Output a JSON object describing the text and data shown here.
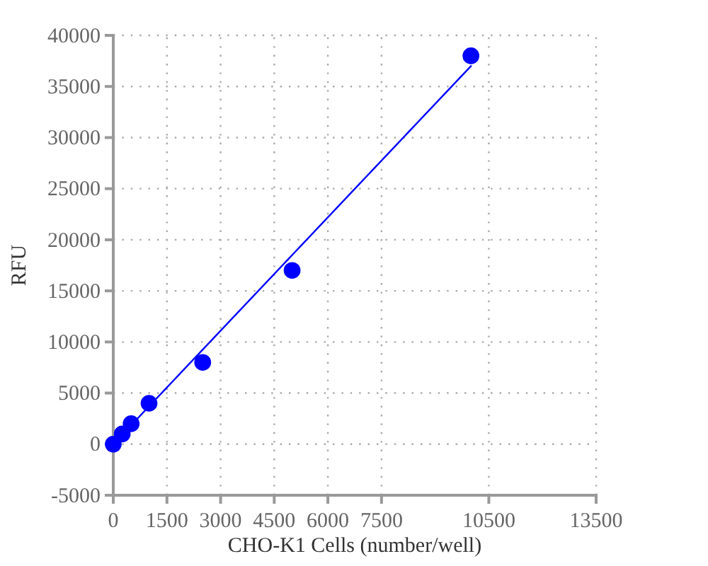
{
  "chart_data": {
    "type": "scatter",
    "xlabel": "CHO-K1 Cells (number/well)",
    "ylabel": "RFU",
    "xlim": [
      0,
      13500
    ],
    "xticks": [
      0,
      1500,
      3000,
      4500,
      6000,
      7500,
      10500,
      13500
    ],
    "ylim": [
      -5000,
      40000
    ],
    "yticks": [
      -5000,
      0,
      5000,
      10000,
      15000,
      20000,
      25000,
      30000,
      35000,
      40000
    ],
    "grid": true,
    "marker": "circle",
    "series": [
      {
        "color": "#0000ff",
        "x": [
          0,
          250,
          500,
          1000,
          2500,
          5000,
          10000
        ],
        "values": [
          0,
          1000,
          2000,
          4000,
          8000,
          17000,
          38000
        ]
      },
      {
        "type": "line",
        "marker": "none",
        "color": "#0000ff",
        "x": [
          0,
          10000
        ],
        "values": [
          0,
          37000
        ]
      }
    ]
  }
}
